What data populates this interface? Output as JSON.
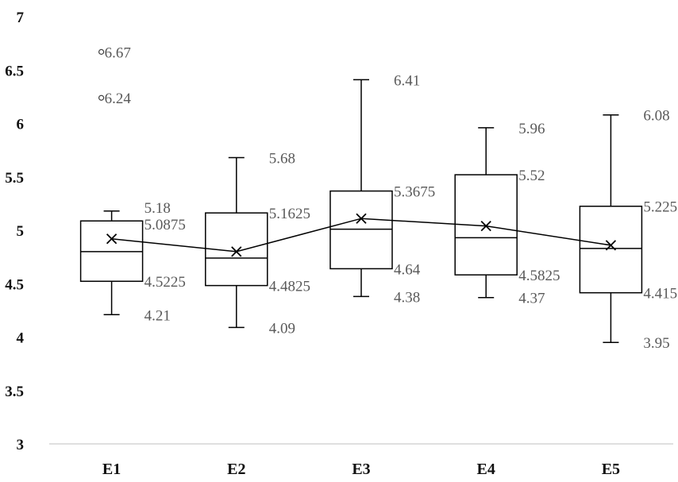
{
  "chart_data": {
    "type": "box",
    "categories": [
      "E1",
      "E2",
      "E3",
      "E4",
      "E5"
    ],
    "ylim": [
      3,
      7
    ],
    "yticks": [
      "3",
      "3.5",
      "4",
      "4.5",
      "5",
      "5.5",
      "6",
      "6.5",
      "7"
    ],
    "grid": false,
    "legend": "none",
    "boxes": [
      {
        "category": "E1",
        "min": 4.21,
        "q1": 4.5225,
        "median": 4.8,
        "q3": 5.0875,
        "max": 5.18,
        "mean": 4.92,
        "outliers": [
          6.24,
          6.67
        ],
        "labels": {
          "min": "4.21",
          "q1": "4.5225",
          "q3": "5.0875",
          "max": "5.18",
          "outliers": [
            "6.24",
            "6.67"
          ]
        }
      },
      {
        "category": "E2",
        "min": 4.09,
        "q1": 4.4825,
        "median": 4.74,
        "q3": 5.1625,
        "max": 5.68,
        "mean": 4.8,
        "outliers": [],
        "labels": {
          "min": "4.09",
          "q1": "4.4825",
          "q3": "5.1625",
          "max": "5.68",
          "outliers": []
        }
      },
      {
        "category": "E3",
        "min": 4.38,
        "q1": 4.64,
        "median": 5.01,
        "q3": 5.3675,
        "max": 6.41,
        "mean": 5.11,
        "outliers": [],
        "labels": {
          "min": "4.38",
          "q1": "4.64",
          "q3": "5.3675",
          "max": "6.41",
          "outliers": []
        }
      },
      {
        "category": "E4",
        "min": 4.37,
        "q1": 4.5825,
        "median": 4.93,
        "q3": 5.52,
        "max": 5.96,
        "mean": 5.04,
        "outliers": [],
        "labels": {
          "min": "4.37",
          "q1": "4.5825",
          "q3": "5.52",
          "max": "5.96",
          "outliers": []
        }
      },
      {
        "category": "E5",
        "min": 3.95,
        "q1": 4.415,
        "median": 4.83,
        "q3": 5.225,
        "max": 6.08,
        "mean": 4.86,
        "outliers": [],
        "labels": {
          "min": "3.95",
          "q1": "4.415",
          "q3": "5.225",
          "max": "6.08",
          "outliers": []
        }
      }
    ],
    "colors": {
      "box_stroke": "#000000",
      "label_text": "#595959",
      "axis": "#bfbfbf",
      "mean_line": "#000000"
    }
  }
}
